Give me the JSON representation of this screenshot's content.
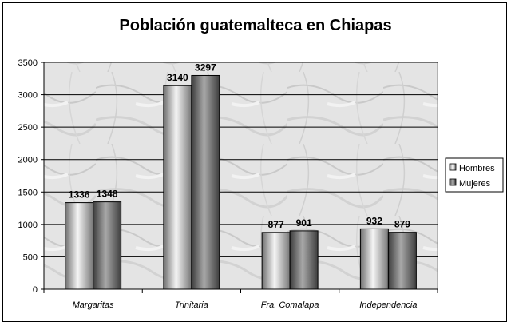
{
  "chart_data": {
    "type": "bar",
    "title": "Población guatemalteca en Chiapas",
    "categories": [
      "Margaritas",
      "Trinitaria",
      "Fra. Comalapa",
      "Independencia"
    ],
    "series": [
      {
        "name": "Hombres",
        "values": [
          1336,
          3140,
          877,
          932
        ],
        "color": "#a0a0a0"
      },
      {
        "name": "Mujeres",
        "values": [
          1348,
          3297,
          901,
          879
        ],
        "color": "#5a5a5a"
      }
    ],
    "ylim": [
      0,
      3500
    ],
    "yticks": [
      "0",
      "500",
      "1000",
      "1500",
      "2000",
      "2500",
      "3000",
      "3500"
    ],
    "grid": true,
    "legend_position": "right",
    "plot_background": "marble-gray"
  }
}
